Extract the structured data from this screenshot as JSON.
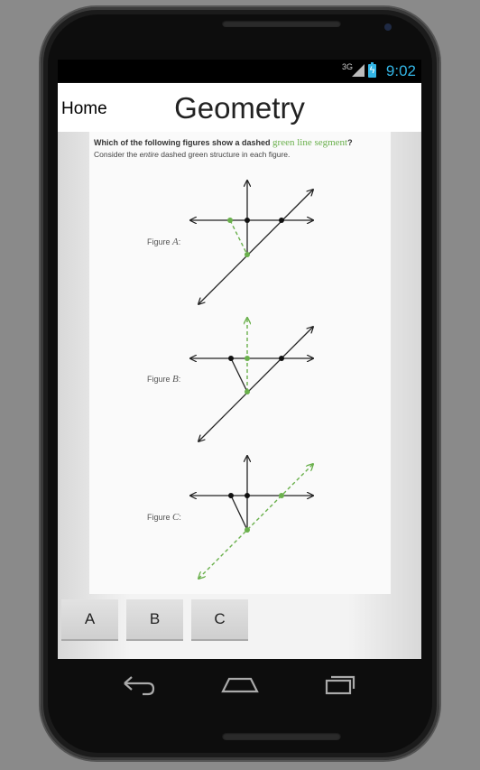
{
  "status_bar": {
    "network": "3G",
    "time": "9:02"
  },
  "app_bar": {
    "home_label": "Home",
    "title": "Geometry"
  },
  "question": {
    "prompt_prefix": "Which of the following figures show a dashed",
    "prompt_highlight": "green line segment",
    "prompt_suffix": "?",
    "instruction_prefix": "Consider the",
    "instruction_emphasis": "entire",
    "instruction_suffix": "dashed green structure in each figure."
  },
  "figures": [
    {
      "prefix": "Figure",
      "letter": "A",
      "suffix": ":"
    },
    {
      "prefix": "Figure",
      "letter": "B",
      "suffix": ":"
    },
    {
      "prefix": "Figure",
      "letter": "C",
      "suffix": ":"
    }
  ],
  "answers": [
    {
      "label": "A"
    },
    {
      "label": "B"
    },
    {
      "label": "C"
    }
  ],
  "nav": {
    "icons": [
      "back-icon",
      "home-icon",
      "recent-apps-icon"
    ]
  },
  "colors": {
    "accent_green": "#6ab04c",
    "status_blue": "#33b5e5",
    "line_dark": "#222222"
  }
}
